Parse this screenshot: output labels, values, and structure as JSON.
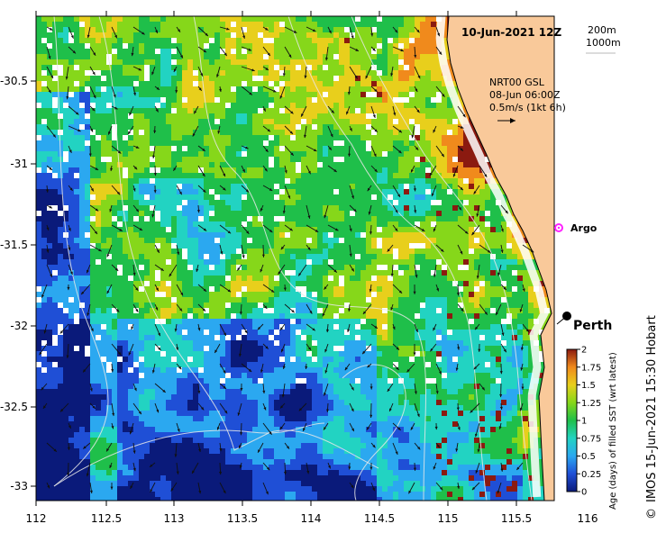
{
  "map": {
    "title": "10-Jun-2021 12Z",
    "depth_legend": [
      "200m",
      "1000m"
    ],
    "current_info": {
      "line1": "NRT00 GSL",
      "line2": "08-Jun 06:00Z",
      "line3": "0.5m/s (1kt 6h)"
    },
    "argo_label": "Argo",
    "city_label": "Perth",
    "credit": "IMOS 15-Jun-2021 15:30 Hobart",
    "copyright_symbol": "©",
    "x_ticks": [
      "112",
      "112.5",
      "113",
      "113.5",
      "114",
      "114.5",
      "115",
      "115.5",
      "116"
    ],
    "y_ticks": [
      "-30.5",
      "-31",
      "-31.5",
      "-32",
      "-32.5",
      "-33"
    ],
    "land_color": "#f9c99a",
    "deep_color": "#0a1a7a"
  },
  "colorbar": {
    "title": "Age (days) of filled SST (wrt latest)",
    "ticks": [
      "0",
      "0.25",
      "0.5",
      "0.75",
      "1",
      "1.25",
      "1.5",
      "1.75",
      "2"
    ],
    "colors": [
      "#0a1a7a",
      "#1f4fd6",
      "#2ba8f0",
      "#22d3c2",
      "#1fbf4a",
      "#86d71a",
      "#e8cf1c",
      "#f08a1c",
      "#8b1a10"
    ]
  }
}
